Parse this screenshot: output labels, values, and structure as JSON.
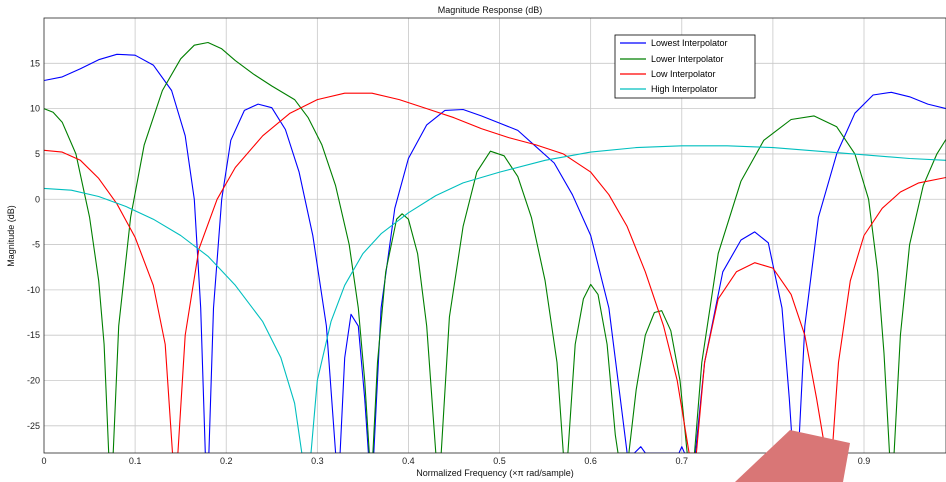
{
  "chart_data": {
    "type": "line",
    "title": "Magnitude Response (dB)",
    "xlabel": "Normalized Frequency (×π rad/sample)",
    "ylabel": "Magnitude (dB)",
    "xlim": [
      0,
      0.99
    ],
    "ylim": [
      -28,
      20
    ],
    "xticks": [
      "0",
      "0.1",
      "0.2",
      "0.3",
      "0.4",
      "0.5",
      "0.6",
      "0.7",
      "0.8",
      "0.9"
    ],
    "yticks": [
      "15",
      "10",
      "5",
      "0",
      "-5",
      "-10",
      "-15",
      "-20",
      "-25"
    ],
    "grid": true,
    "legend_position": "top-right",
    "series": [
      {
        "name": "Lowest Interpolator",
        "color": "#0000ff",
        "points": [
          [
            0,
            13.1
          ],
          [
            0.02,
            13.5
          ],
          [
            0.04,
            14.4
          ],
          [
            0.06,
            15.4
          ],
          [
            0.08,
            16.0
          ],
          [
            0.1,
            15.9
          ],
          [
            0.12,
            14.8
          ],
          [
            0.14,
            12.0
          ],
          [
            0.155,
            7.0
          ],
          [
            0.165,
            0.0
          ],
          [
            0.172,
            -12.0
          ],
          [
            0.177,
            -28.0
          ],
          [
            0.181,
            -28.0
          ],
          [
            0.186,
            -12.0
          ],
          [
            0.195,
            0.0
          ],
          [
            0.205,
            6.5
          ],
          [
            0.22,
            9.8
          ],
          [
            0.235,
            10.5
          ],
          [
            0.25,
            10.1
          ],
          [
            0.265,
            7.7
          ],
          [
            0.28,
            3.0
          ],
          [
            0.295,
            -4.0
          ],
          [
            0.31,
            -14.0
          ],
          [
            0.32,
            -28.0
          ],
          [
            0.325,
            -28.0
          ],
          [
            0.33,
            -17.5
          ],
          [
            0.337,
            -12.7
          ],
          [
            0.345,
            -14.0
          ],
          [
            0.352,
            -22.0
          ],
          [
            0.356,
            -28.0
          ],
          [
            0.362,
            -28.0
          ],
          [
            0.37,
            -12.0
          ],
          [
            0.385,
            -1.0
          ],
          [
            0.4,
            4.5
          ],
          [
            0.42,
            8.2
          ],
          [
            0.44,
            9.8
          ],
          [
            0.46,
            9.9
          ],
          [
            0.48,
            9.2
          ],
          [
            0.5,
            8.4
          ],
          [
            0.52,
            7.6
          ],
          [
            0.54,
            5.8
          ],
          [
            0.56,
            4.0
          ],
          [
            0.58,
            0.5
          ],
          [
            0.6,
            -4.0
          ],
          [
            0.62,
            -12.0
          ],
          [
            0.635,
            -24.0
          ],
          [
            0.64,
            -28.0
          ],
          [
            0.648,
            -28.0
          ],
          [
            0.655,
            -27.3
          ],
          [
            0.66,
            -28.0
          ],
          [
            0.697,
            -28.0
          ],
          [
            0.7,
            -27.3
          ],
          [
            0.703,
            -28.0
          ],
          [
            0.715,
            -28.0
          ],
          [
            0.725,
            -18.0
          ],
          [
            0.745,
            -8.0
          ],
          [
            0.765,
            -4.5
          ],
          [
            0.78,
            -3.6
          ],
          [
            0.795,
            -4.8
          ],
          [
            0.81,
            -12.0
          ],
          [
            0.818,
            -22.0
          ],
          [
            0.822,
            -28.0
          ],
          [
            0.828,
            -28.0
          ],
          [
            0.835,
            -14.0
          ],
          [
            0.85,
            -2.0
          ],
          [
            0.87,
            5.0
          ],
          [
            0.89,
            9.5
          ],
          [
            0.91,
            11.5
          ],
          [
            0.93,
            11.8
          ],
          [
            0.95,
            11.3
          ],
          [
            0.97,
            10.5
          ],
          [
            0.99,
            10.0
          ]
        ]
      },
      {
        "name": "Lower Interpolator",
        "color": "#007f00",
        "points": [
          [
            0,
            10.0
          ],
          [
            0.01,
            9.6
          ],
          [
            0.02,
            8.5
          ],
          [
            0.035,
            5.0
          ],
          [
            0.05,
            -2.0
          ],
          [
            0.06,
            -9.0
          ],
          [
            0.066,
            -16.0
          ],
          [
            0.071,
            -28.0
          ],
          [
            0.076,
            -28.0
          ],
          [
            0.082,
            -14.0
          ],
          [
            0.095,
            -2.0
          ],
          [
            0.11,
            6.0
          ],
          [
            0.13,
            12.0
          ],
          [
            0.15,
            15.5
          ],
          [
            0.165,
            17.0
          ],
          [
            0.18,
            17.3
          ],
          [
            0.195,
            16.6
          ],
          [
            0.21,
            15.3
          ],
          [
            0.23,
            13.8
          ],
          [
            0.25,
            12.5
          ],
          [
            0.275,
            11.0
          ],
          [
            0.29,
            9.0
          ],
          [
            0.305,
            6.0
          ],
          [
            0.32,
            1.5
          ],
          [
            0.335,
            -5.0
          ],
          [
            0.345,
            -12.0
          ],
          [
            0.352,
            -20.0
          ],
          [
            0.357,
            -28.0
          ],
          [
            0.361,
            -28.0
          ],
          [
            0.366,
            -18.0
          ],
          [
            0.375,
            -8.0
          ],
          [
            0.387,
            -2.2
          ],
          [
            0.393,
            -1.6
          ],
          [
            0.4,
            -2.2
          ],
          [
            0.41,
            -6.0
          ],
          [
            0.42,
            -14.0
          ],
          [
            0.43,
            -28.0
          ],
          [
            0.436,
            -28.0
          ],
          [
            0.445,
            -13.0
          ],
          [
            0.46,
            -3.0
          ],
          [
            0.475,
            3.0
          ],
          [
            0.49,
            5.3
          ],
          [
            0.505,
            4.8
          ],
          [
            0.52,
            2.5
          ],
          [
            0.535,
            -2.0
          ],
          [
            0.55,
            -9.0
          ],
          [
            0.563,
            -18.0
          ],
          [
            0.57,
            -28.0
          ],
          [
            0.575,
            -28.0
          ],
          [
            0.583,
            -16.0
          ],
          [
            0.592,
            -11.0
          ],
          [
            0.6,
            -9.4
          ],
          [
            0.608,
            -10.5
          ],
          [
            0.618,
            -16.0
          ],
          [
            0.627,
            -26.0
          ],
          [
            0.63,
            -28.0
          ],
          [
            0.642,
            -28.0
          ],
          [
            0.65,
            -21.0
          ],
          [
            0.66,
            -15.0
          ],
          [
            0.67,
            -12.5
          ],
          [
            0.678,
            -12.3
          ],
          [
            0.688,
            -14.5
          ],
          [
            0.698,
            -20.0
          ],
          [
            0.706,
            -28.0
          ],
          [
            0.714,
            -28.0
          ],
          [
            0.722,
            -18.0
          ],
          [
            0.74,
            -6.0
          ],
          [
            0.765,
            2.0
          ],
          [
            0.79,
            6.5
          ],
          [
            0.82,
            8.8
          ],
          [
            0.845,
            9.2
          ],
          [
            0.87,
            8.0
          ],
          [
            0.89,
            5.0
          ],
          [
            0.905,
            0.0
          ],
          [
            0.915,
            -8.0
          ],
          [
            0.922,
            -17.0
          ],
          [
            0.928,
            -28.0
          ],
          [
            0.933,
            -28.0
          ],
          [
            0.94,
            -15.0
          ],
          [
            0.95,
            -5.0
          ],
          [
            0.965,
            1.5
          ],
          [
            0.98,
            5.0
          ],
          [
            0.99,
            6.6
          ]
        ]
      },
      {
        "name": "Low Interpolator",
        "color": "#ff0000",
        "points": [
          [
            0,
            5.4
          ],
          [
            0.02,
            5.2
          ],
          [
            0.04,
            4.3
          ],
          [
            0.06,
            2.3
          ],
          [
            0.08,
            -0.5
          ],
          [
            0.1,
            -4.2
          ],
          [
            0.12,
            -9.5
          ],
          [
            0.133,
            -16.0
          ],
          [
            0.141,
            -28.0
          ],
          [
            0.147,
            -28.0
          ],
          [
            0.155,
            -15.0
          ],
          [
            0.17,
            -5.5
          ],
          [
            0.19,
            0.0
          ],
          [
            0.21,
            3.5
          ],
          [
            0.24,
            7.0
          ],
          [
            0.27,
            9.5
          ],
          [
            0.3,
            11.0
          ],
          [
            0.33,
            11.7
          ],
          [
            0.36,
            11.7
          ],
          [
            0.39,
            11.0
          ],
          [
            0.42,
            10.0
          ],
          [
            0.45,
            9.0
          ],
          [
            0.48,
            7.8
          ],
          [
            0.51,
            6.8
          ],
          [
            0.54,
            6.0
          ],
          [
            0.57,
            5.0
          ],
          [
            0.6,
            3.0
          ],
          [
            0.62,
            0.5
          ],
          [
            0.64,
            -3.0
          ],
          [
            0.66,
            -8.0
          ],
          [
            0.68,
            -14.0
          ],
          [
            0.695,
            -20.0
          ],
          [
            0.708,
            -28.0
          ],
          [
            0.716,
            -28.0
          ],
          [
            0.725,
            -18.0
          ],
          [
            0.74,
            -11.0
          ],
          [
            0.76,
            -8.0
          ],
          [
            0.78,
            -7.0
          ],
          [
            0.8,
            -7.6
          ],
          [
            0.82,
            -10.5
          ],
          [
            0.835,
            -15.0
          ],
          [
            0.848,
            -22.0
          ],
          [
            0.858,
            -28.0
          ],
          [
            0.865,
            -28.0
          ],
          [
            0.872,
            -18.0
          ],
          [
            0.885,
            -9.0
          ],
          [
            0.9,
            -4.0
          ],
          [
            0.92,
            -1.0
          ],
          [
            0.94,
            0.8
          ],
          [
            0.96,
            1.8
          ],
          [
            0.99,
            2.4
          ]
        ]
      },
      {
        "name": "High Interpolator",
        "color": "#00bfbf",
        "points": [
          [
            0,
            1.2
          ],
          [
            0.03,
            1.0
          ],
          [
            0.06,
            0.3
          ],
          [
            0.09,
            -0.8
          ],
          [
            0.12,
            -2.2
          ],
          [
            0.15,
            -4.0
          ],
          [
            0.18,
            -6.3
          ],
          [
            0.21,
            -9.5
          ],
          [
            0.24,
            -13.5
          ],
          [
            0.26,
            -17.5
          ],
          [
            0.275,
            -22.5
          ],
          [
            0.283,
            -28.0
          ],
          [
            0.293,
            -28.0
          ],
          [
            0.3,
            -20.0
          ],
          [
            0.315,
            -13.5
          ],
          [
            0.33,
            -9.5
          ],
          [
            0.35,
            -6.0
          ],
          [
            0.37,
            -3.8
          ],
          [
            0.4,
            -1.5
          ],
          [
            0.43,
            0.4
          ],
          [
            0.46,
            1.8
          ],
          [
            0.5,
            3.0
          ],
          [
            0.55,
            4.3
          ],
          [
            0.6,
            5.2
          ],
          [
            0.65,
            5.7
          ],
          [
            0.7,
            5.9
          ],
          [
            0.75,
            5.9
          ],
          [
            0.8,
            5.7
          ],
          [
            0.85,
            5.3
          ],
          [
            0.9,
            4.9
          ],
          [
            0.95,
            4.5
          ],
          [
            0.99,
            4.3
          ]
        ]
      }
    ]
  }
}
